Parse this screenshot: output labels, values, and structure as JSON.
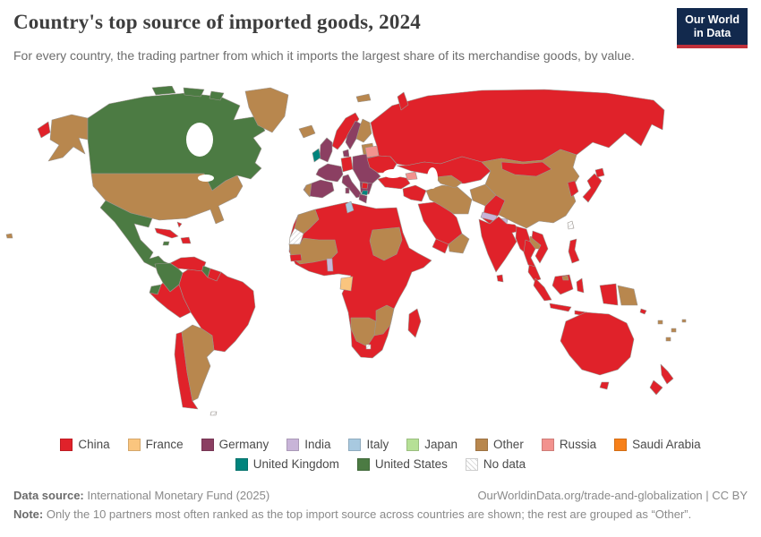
{
  "header": {
    "title": "Country's top source of imported goods, 2024",
    "subtitle": "For every country, the trading partner from which it imports the largest share of its merchandise goods, by value.",
    "logo_line1": "Our World",
    "logo_line2": "in Data",
    "logo_bg": "#12294d",
    "logo_stripe": "#c0303a"
  },
  "legend": {
    "row_break": 9,
    "items": [
      {
        "key": "china",
        "label": "China",
        "color": "#e0222a"
      },
      {
        "key": "france",
        "label": "France",
        "color": "#fac57e"
      },
      {
        "key": "germany",
        "label": "Germany",
        "color": "#8b3f62"
      },
      {
        "key": "india",
        "label": "India",
        "color": "#c8b4d8"
      },
      {
        "key": "italy",
        "label": "Italy",
        "color": "#a8c9e0"
      },
      {
        "key": "japan",
        "label": "Japan",
        "color": "#b6e096"
      },
      {
        "key": "other",
        "label": "Other",
        "color": "#b8874e"
      },
      {
        "key": "russia",
        "label": "Russia",
        "color": "#f2928e"
      },
      {
        "key": "saudi_arabia",
        "label": "Saudi Arabia",
        "color": "#f78019"
      },
      {
        "key": "united_kingdom",
        "label": "United Kingdom",
        "color": "#00847d"
      },
      {
        "key": "united_states",
        "label": "United States",
        "color": "#4c7b43"
      },
      {
        "key": "no_data",
        "label": "No data",
        "color": "hatch"
      }
    ]
  },
  "map": {
    "ocean": "#ffffff",
    "border": "#9b958f",
    "regions": {
      "russia_east": "china",
      "alaska": "other",
      "hawaii": "other",
      "canada": "united_states",
      "canada_arctic": "united_states",
      "greenland": "other",
      "usa": "other",
      "mexico_central_america": "united_states",
      "cuba": "china",
      "jamaica": "united_states",
      "hispaniola": "china",
      "bahamas": "china",
      "venezuela": "china",
      "colombia": "united_states",
      "ecuador": "united_states",
      "guyana": "united_states",
      "suriname_guiana": "china",
      "brazil": "china",
      "peru": "china",
      "chile": "china",
      "argentina": "other",
      "falkland_islands": "no_data",
      "iceland": "other",
      "norway": "china",
      "sweden": "germany",
      "finland": "other",
      "baltics": "other",
      "denmark": "germany",
      "uk": "germany",
      "ireland": "united_kingdom",
      "germany": "china",
      "france": "germany",
      "spain": "germany",
      "portugal": "other",
      "central_europe": "germany",
      "italy": "germany",
      "balkans": "germany",
      "serbia": "china",
      "north_macedonia": "united_kingdom",
      "greece": "germany",
      "belarus": "russia",
      "ukraine": "china",
      "russia": "china",
      "svalbard": "other",
      "novaya_zemlya": "china",
      "kazakhstan_central_asia": "china",
      "turkey": "china",
      "caucasus": "russia",
      "levant_iraq": "china",
      "saudi_arabia": "china",
      "yemen": "china",
      "oman_uae": "other",
      "iran": "other",
      "turkmenistan": "other",
      "afghanistan": "other",
      "pakistan": "china",
      "china": "other",
      "mongolia": "china",
      "nepal": "india",
      "bhutan": "india",
      "india": "china",
      "sri_lanka": "china",
      "myanmar": "china",
      "laos": "other",
      "thailand": "china",
      "vietnam": "china",
      "malaysia": "china",
      "korea": "china",
      "japan": "china",
      "taiwan": "no_data",
      "philippines": "china",
      "indonesia": "china",
      "brunei": "other",
      "papua_new_guinea": "other",
      "solomon_islands": "china",
      "pacific_islands": "other",
      "australia": "china",
      "new_zealand": "china",
      "africa_china_bloc": "china",
      "morocco": "other",
      "western_sahara": "no_data",
      "mauritania_mali": "other",
      "senegal": "china",
      "tunisia": "italy",
      "sudan": "other",
      "benin": "india",
      "gabon": "france",
      "namibia_botswana": "other",
      "zimbabwe_mozambique": "other",
      "lesotho": "no_data",
      "madagascar": "china"
    }
  },
  "footer": {
    "source_label": "Data source:",
    "source_value": " International Monetary Fund (2025)",
    "link": "OurWorldinData.org/trade-and-globalization | CC BY",
    "note_label": "Note:",
    "note_value": " Only the 10 partners most often ranked as the top import source across countries are shown; the rest are grouped as “Other”."
  }
}
